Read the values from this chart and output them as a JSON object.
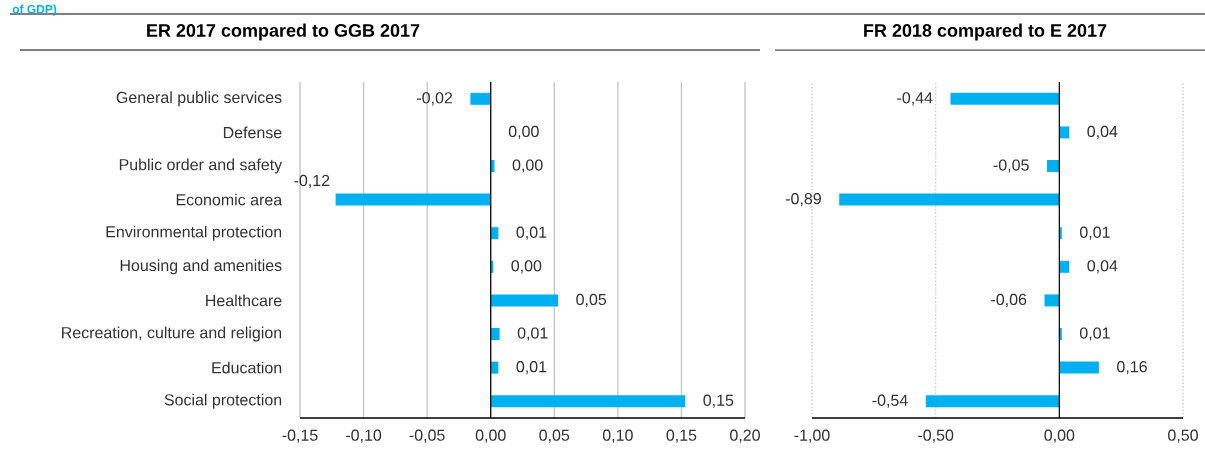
{
  "chart_data": [
    {
      "type": "bar",
      "orientation": "horizontal",
      "title": "ER 2017 compared to GGB 2017",
      "annotations": [
        "of GDP)"
      ],
      "categories": [
        "General public services",
        "Defense",
        "Public order and safety",
        "Economic area",
        "Environmental protection",
        "Housing and amenities",
        "Healthcare",
        "Recreation, culture and religion",
        "Education",
        "Social protection"
      ],
      "values": [
        -0.016,
        0,
        0.003,
        -0.122,
        0.006,
        0.002,
        0.053,
        0.007,
        0.006,
        0.153
      ],
      "value_labels": [
        "-0,02",
        "0,00",
        "0,00",
        "-0,12",
        "0,01",
        "0,00",
        "0,05",
        "0,01",
        "0,01",
        "0,15"
      ],
      "color": "#00b0f0",
      "xlim": [
        -0.15,
        0.2
      ],
      "xticks": [
        {
          "value": -0.15,
          "label": "-0,15"
        },
        {
          "value": -0.1,
          "label": "-0,10"
        },
        {
          "value": -0.05,
          "label": "-0,05"
        },
        {
          "value": 0,
          "label": "0,00"
        },
        {
          "value": 0.05,
          "label": "0,05"
        },
        {
          "value": 0.1,
          "label": "0,10"
        },
        {
          "value": 0.15,
          "label": "0,15"
        },
        {
          "value": 0.2,
          "label": "0,20"
        }
      ],
      "grid": "x",
      "line_style": "solid"
    },
    {
      "type": "bar",
      "orientation": "horizontal",
      "title": "FR 2018 compared to E 2017",
      "categories": [
        null,
        null,
        null,
        null,
        null,
        null,
        null,
        null,
        null,
        null
      ],
      "values": [
        -0.44,
        0.04,
        -0.05,
        -0.89,
        0.01,
        0.04,
        -0.06,
        0.01,
        0.16,
        -0.54
      ],
      "value_labels": [
        "-0,44",
        "0,04",
        "-0,05",
        "-0,89",
        "0,01",
        "0,04",
        "-0,06",
        "0,01",
        "0,16",
        "-0,54"
      ],
      "color": "#00b0f0",
      "xlim": [
        -1.0,
        0.5
      ],
      "xticks": [
        {
          "value": -1.0,
          "label": "-1,00"
        },
        {
          "value": -0.5,
          "label": "-0,50"
        },
        {
          "value": 0,
          "label": "0,00"
        },
        {
          "value": 0.5,
          "label": "0,50"
        }
      ],
      "grid": "x",
      "line_style": "dotted",
      "tick_labels": "x"
    }
  ]
}
